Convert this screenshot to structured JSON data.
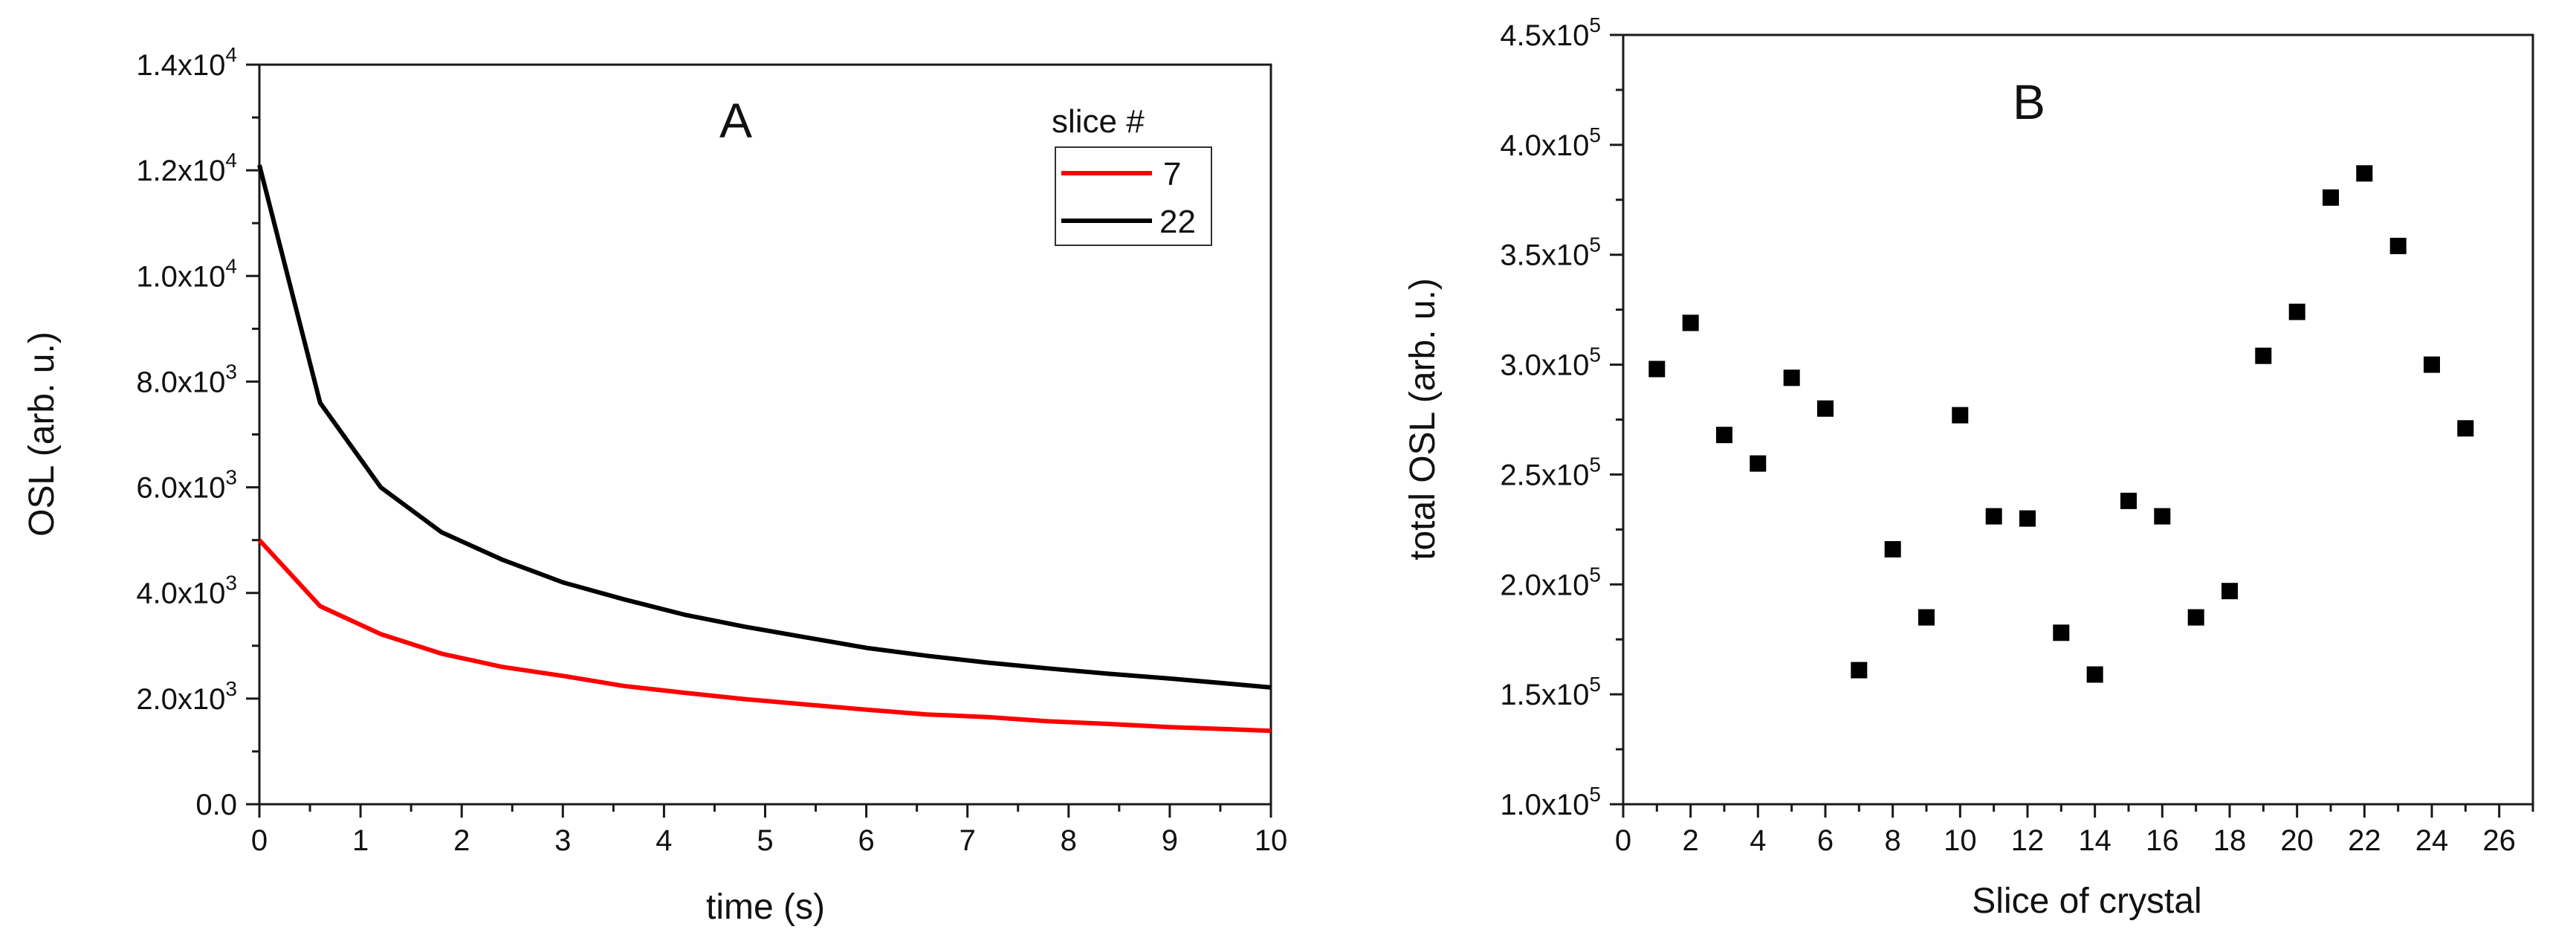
{
  "chart_data": [
    {
      "panel": "A",
      "type": "line",
      "title": "A",
      "xlabel": "time (s)",
      "ylabel": "OSL (arb. u.)",
      "xlim": [
        0,
        10
      ],
      "ylim": [
        0,
        14000
      ],
      "x_ticks": [
        "0",
        "1",
        "2",
        "3",
        "4",
        "5",
        "6",
        "7",
        "8",
        "9",
        "10"
      ],
      "y_ticks": [
        {
          "mant": "0.0",
          "exp": ""
        },
        {
          "mant": "2.0x10",
          "exp": "3"
        },
        {
          "mant": "4.0x10",
          "exp": "3"
        },
        {
          "mant": "6.0x10",
          "exp": "3"
        },
        {
          "mant": "8.0x10",
          "exp": "3"
        },
        {
          "mant": "1.0x10",
          "exp": "4"
        },
        {
          "mant": "1.2x10",
          "exp": "4"
        },
        {
          "mant": "1.4x10",
          "exp": "4"
        }
      ],
      "legend": {
        "title": "slice #",
        "position": "top-right"
      },
      "series": [
        {
          "name": "7",
          "color": "#ff0000",
          "x": [
            0,
            0.6,
            1.2,
            1.8,
            2.4,
            3.0,
            3.6,
            4.2,
            4.8,
            5.4,
            6.0,
            6.6,
            7.2,
            7.8,
            8.4,
            9.0,
            9.6,
            10.0
          ],
          "y": [
            5000,
            3750,
            3220,
            2850,
            2600,
            2430,
            2240,
            2110,
            1990,
            1890,
            1790,
            1700,
            1650,
            1570,
            1520,
            1460,
            1420,
            1390
          ]
        },
        {
          "name": "22",
          "color": "#000000",
          "x": [
            0,
            0.6,
            1.2,
            1.8,
            2.4,
            3.0,
            3.6,
            4.2,
            4.8,
            5.4,
            6.0,
            6.6,
            7.2,
            7.8,
            8.4,
            9.0,
            9.6,
            10.0
          ],
          "y": [
            12100,
            7600,
            6000,
            5150,
            4630,
            4200,
            3880,
            3590,
            3360,
            3160,
            2960,
            2810,
            2680,
            2570,
            2470,
            2380,
            2280,
            2210
          ]
        }
      ]
    },
    {
      "panel": "B",
      "type": "scatter",
      "title": "B",
      "xlabel": "Slice of crystal",
      "ylabel": "total OSL (arb. u.)",
      "xlim": [
        0,
        27
      ],
      "ylim": [
        100000,
        450000
      ],
      "x_ticks": [
        "0",
        "2",
        "4",
        "6",
        "8",
        "10",
        "12",
        "14",
        "16",
        "18",
        "20",
        "22",
        "24",
        "26"
      ],
      "y_ticks": [
        {
          "mant": "1.0x10",
          "exp": "5"
        },
        {
          "mant": "1.5x10",
          "exp": "5"
        },
        {
          "mant": "2.0x10",
          "exp": "5"
        },
        {
          "mant": "2.5x10",
          "exp": "5"
        },
        {
          "mant": "3.0x10",
          "exp": "5"
        },
        {
          "mant": "3.5x10",
          "exp": "5"
        },
        {
          "mant": "4.0x10",
          "exp": "5"
        },
        {
          "mant": "4.5x10",
          "exp": "5"
        }
      ],
      "marker_color": "#000000",
      "x": [
        1,
        2,
        3,
        4,
        5,
        6,
        7,
        8,
        9,
        10,
        11,
        12,
        13,
        14,
        15,
        16,
        17,
        18,
        19,
        20,
        21,
        22,
        23,
        24,
        25
      ],
      "y": [
        298000,
        319000,
        268000,
        255000,
        294000,
        280000,
        161000,
        216000,
        185000,
        277000,
        231000,
        230000,
        178000,
        159000,
        238000,
        231000,
        185000,
        197000,
        304000,
        324000,
        376000,
        387000,
        354000,
        300000,
        271000
      ]
    }
  ]
}
